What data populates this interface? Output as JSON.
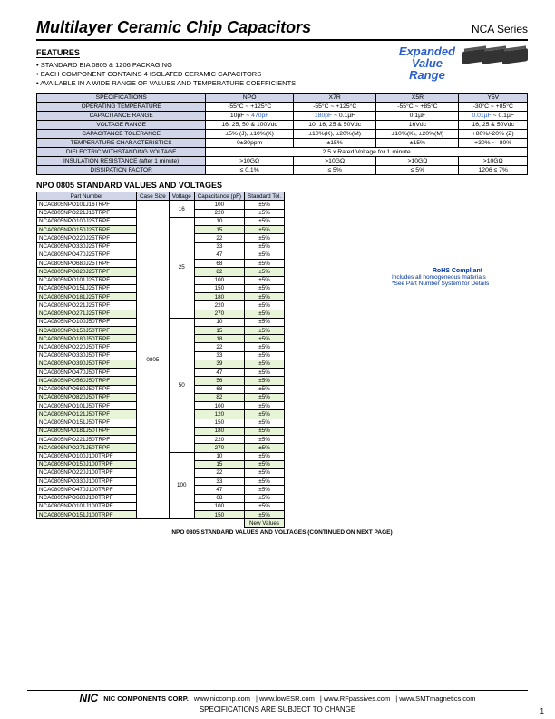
{
  "header": {
    "title": "Multilayer Ceramic Chip Capacitors",
    "series": "NCA Series"
  },
  "features": {
    "label": "FEATURES",
    "items": [
      "STANDARD EIA 0805 & 1206 PACKAGING",
      "EACH COMPONENT CONTAINS 4 ISOLATED CERAMIC CAPACITORS",
      "AVAILABLE IN A WIDE RANGE OF VALUES AND TEMPERATURE COEFFICIENTS"
    ]
  },
  "expanded": {
    "l1": "Expanded",
    "l2": "Value",
    "l3": "Range"
  },
  "spec": {
    "head": [
      "SPECIFICATIONS",
      "NPO",
      "X7R",
      "X5R",
      "Y5V"
    ],
    "rows": [
      [
        "OPERATING TEMPERATURE",
        "-55°C ~ +125°C",
        "-55°C ~ +125°C",
        "-55°C ~ +85°C",
        "-30°C ~ +85°C"
      ],
      [
        "CAPACITANCE RANGE",
        "10pF ~ 470pF",
        "180pF ~ 0.1µF",
        "0.1µF",
        "0.01µF ~ 0.1µF"
      ],
      [
        "VOLTAGE RANGE",
        "16, 25, 50 & 100Vdc",
        "10, 16, 25 & 50Vdc",
        "16Vdc",
        "16, 25 & 50Vdc"
      ],
      [
        "CAPACITANCE TOLERANCE",
        "±5% (J), ±10%(K)",
        "±10%(K), ±20%(M)",
        "±10%(K), ±20%(M)",
        "+80%/-20% (Z)"
      ],
      [
        "TEMPERATURE CHARACTERISTICS",
        "0±30ppm",
        "±15%",
        "±15%",
        "+30% ~ -80%"
      ],
      [
        "DIELECTRIC WITHSTANDING VOLTAGE",
        "2.5 x Rated Voltage for 1 minute"
      ],
      [
        "INSULATION RESISTANCE (after 1 minute)",
        ">10GΩ",
        ">10GΩ",
        ">10GΩ",
        ">10GΩ"
      ],
      [
        "DISSIPATION FACTOR",
        "≤ 0.1%",
        "≤ 5%",
        "≤ 5%",
        "1206 ≤ 7%"
      ]
    ],
    "cap_blue": [
      "470pF",
      "180pF",
      "0.01µF"
    ]
  },
  "values_title": "NPO 0805 STANDARD VALUES AND VOLTAGES",
  "values_head": [
    "Part Number",
    "Case Size",
    "Voltage",
    "Capacitance (pF)",
    "Standard Tol."
  ],
  "case_size": "0805",
  "groups": [
    {
      "voltage": "16",
      "rows": [
        {
          "pn": "NCA0805NPO101J16TRPF",
          "cap": "100",
          "tol": "±5%",
          "new": false
        },
        {
          "pn": "NCA0805NPO221J16TRPF",
          "cap": "220",
          "tol": "±5%",
          "new": false
        }
      ]
    },
    {
      "voltage": "25",
      "rows": [
        {
          "pn": "NCA0805NPO100J25TRPF",
          "cap": "10",
          "tol": "±5%",
          "new": false
        },
        {
          "pn": "NCA0805NPO150J25TRPF",
          "cap": "15",
          "tol": "±5%",
          "new": true
        },
        {
          "pn": "NCA0805NPO220J25TRPF",
          "cap": "22",
          "tol": "±5%",
          "new": false
        },
        {
          "pn": "NCA0805NPO330J25TRPF",
          "cap": "33",
          "tol": "±5%",
          "new": false
        },
        {
          "pn": "NCA0805NPO470J25TRPF",
          "cap": "47",
          "tol": "±5%",
          "new": false
        },
        {
          "pn": "NCA0805NPO680J25TRPF",
          "cap": "68",
          "tol": "±5%",
          "new": false
        },
        {
          "pn": "NCA0805NPO820J25TRPF",
          "cap": "82",
          "tol": "±5%",
          "new": true
        },
        {
          "pn": "NCA0805NPO101J25TRPF",
          "cap": "100",
          "tol": "±5%",
          "new": false
        },
        {
          "pn": "NCA0805NPO151J25TRPF",
          "cap": "150",
          "tol": "±5%",
          "new": false
        },
        {
          "pn": "NCA0805NPO181J25TRPF",
          "cap": "180",
          "tol": "±5%",
          "new": true
        },
        {
          "pn": "NCA0805NPO221J25TRPF",
          "cap": "220",
          "tol": "±5%",
          "new": false
        },
        {
          "pn": "NCA0805NPO271J25TRPF",
          "cap": "270",
          "tol": "±5%",
          "new": true
        }
      ]
    },
    {
      "voltage": "50",
      "rows": [
        {
          "pn": "NCA0805NPO100J50TRPF",
          "cap": "10",
          "tol": "±5%",
          "new": false
        },
        {
          "pn": "NCA0805NPO150J50TRPF",
          "cap": "15",
          "tol": "±5%",
          "new": true
        },
        {
          "pn": "NCA0805NPO180J50TRPF",
          "cap": "18",
          "tol": "±5%",
          "new": true
        },
        {
          "pn": "NCA0805NPO220J50TRPF",
          "cap": "22",
          "tol": "±5%",
          "new": false
        },
        {
          "pn": "NCA0805NPO330J50TRPF",
          "cap": "33",
          "tol": "±5%",
          "new": false
        },
        {
          "pn": "NCA0805NPO390J50TRPF",
          "cap": "39",
          "tol": "±5%",
          "new": true
        },
        {
          "pn": "NCA0805NPO470J50TRPF",
          "cap": "47",
          "tol": "±5%",
          "new": false
        },
        {
          "pn": "NCA0805NPO560J50TRPF",
          "cap": "56",
          "tol": "±5%",
          "new": true
        },
        {
          "pn": "NCA0805NPO680J50TRPF",
          "cap": "68",
          "tol": "±5%",
          "new": false
        },
        {
          "pn": "NCA0805NPO820J50TRPF",
          "cap": "82",
          "tol": "±5%",
          "new": true
        },
        {
          "pn": "NCA0805NPO101J50TRPF",
          "cap": "100",
          "tol": "±5%",
          "new": false
        },
        {
          "pn": "NCA0805NPO121J50TRPF",
          "cap": "120",
          "tol": "±5%",
          "new": true
        },
        {
          "pn": "NCA0805NPO151J50TRPF",
          "cap": "150",
          "tol": "±5%",
          "new": false
        },
        {
          "pn": "NCA0805NPO181J50TRPF",
          "cap": "180",
          "tol": "±5%",
          "new": true
        },
        {
          "pn": "NCA0805NPO221J50TRPF",
          "cap": "220",
          "tol": "±5%",
          "new": false
        },
        {
          "pn": "NCA0805NPO271J50TRPF",
          "cap": "270",
          "tol": "±5%",
          "new": true
        }
      ]
    },
    {
      "voltage": "100",
      "rows": [
        {
          "pn": "NCA0805NPO100J100TRPF",
          "cap": "10",
          "tol": "±5%",
          "new": false
        },
        {
          "pn": "NCA0805NPO150J100TRPF",
          "cap": "15",
          "tol": "±5%",
          "new": true
        },
        {
          "pn": "NCA0805NPO220J100TRPF",
          "cap": "22",
          "tol": "±5%",
          "new": false
        },
        {
          "pn": "NCA0805NPO330J100TRPF",
          "cap": "33",
          "tol": "±5%",
          "new": false
        },
        {
          "pn": "NCA0805NPO470J100TRPF",
          "cap": "47",
          "tol": "±5%",
          "new": false
        },
        {
          "pn": "NCA0805NPO680J100TRPF",
          "cap": "68",
          "tol": "±5%",
          "new": false
        },
        {
          "pn": "NCA0805NPO101J100TRPF",
          "cap": "100",
          "tol": "±5%",
          "new": false
        },
        {
          "pn": "NCA0805NPO151J100TRPF",
          "cap": "150",
          "tol": "±5%",
          "new": true
        }
      ]
    }
  ],
  "new_values_label": "New Values",
  "cont": "NPO 0805 STANDARD VALUES AND VOLTAGES (CONTINUED ON NEXT PAGE)",
  "rohs": {
    "title": "RoHS Compliant",
    "l1": "Includes all homogeneous materials",
    "l2": "*See Part Number System for Details"
  },
  "footer": {
    "corp": "NIC COMPONENTS CORP.",
    "links": [
      "www.niccomp.com",
      "www.lowESR.com",
      "www.RFpassives.com",
      "www.SMTmagnetics.com"
    ],
    "note": "SPECIFICATIONS ARE SUBJECT TO CHANGE",
    "page": "1"
  }
}
